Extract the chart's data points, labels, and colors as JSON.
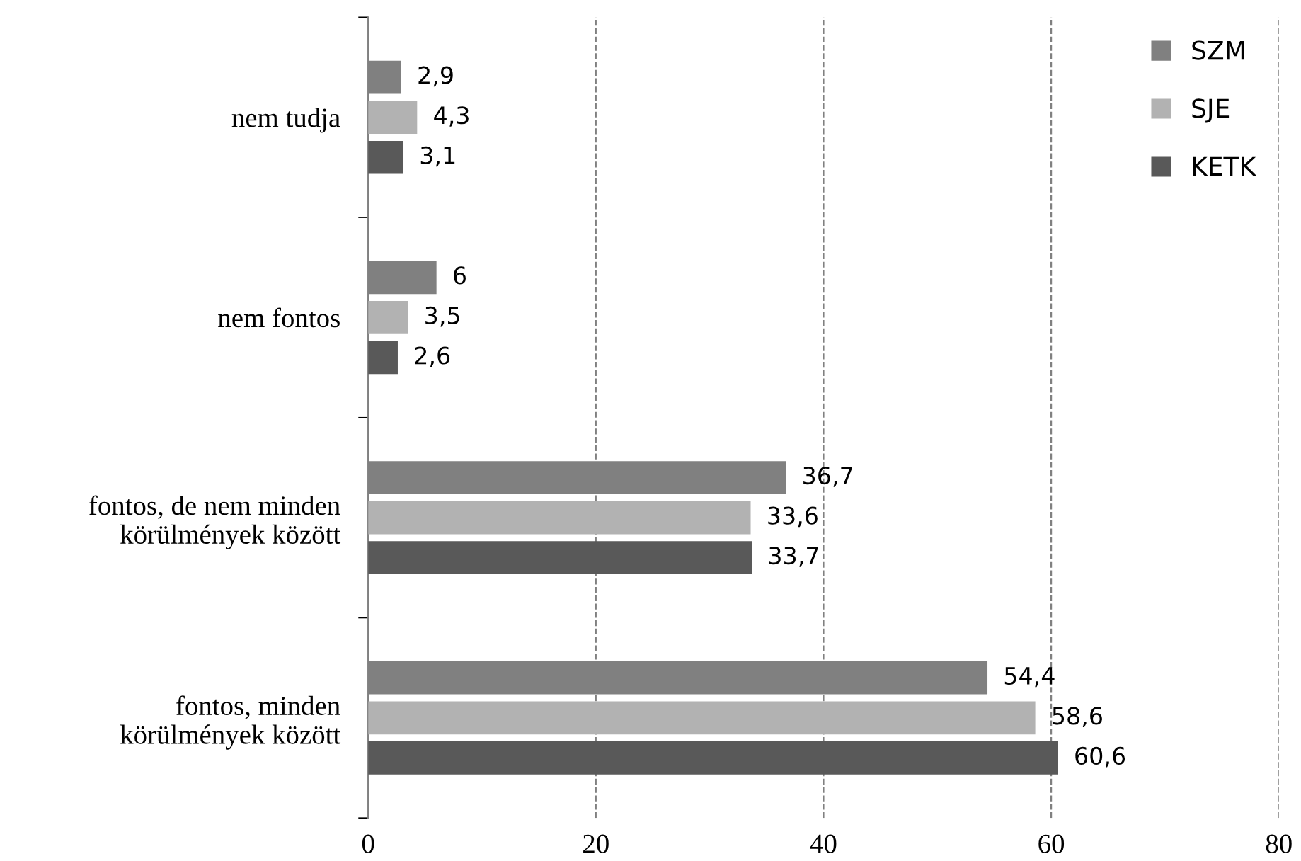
{
  "chart_data": {
    "type": "bar",
    "orientation": "horizontal",
    "categories": [
      "nem tudja",
      "nem fontos",
      "fontos, de nem minden\nkörülmények között",
      "fontos, minden\nkörülmények között"
    ],
    "series": [
      {
        "name": "SZM",
        "color": "#808080",
        "values": [
          2.9,
          6,
          36.7,
          54.4
        ],
        "value_labels": [
          "2,9",
          "6",
          "36,7",
          "54,4"
        ]
      },
      {
        "name": "SJE",
        "color": "#b2b2b2",
        "values": [
          4.3,
          3.5,
          33.6,
          58.6
        ],
        "value_labels": [
          "4,3",
          "3,5",
          "33,6",
          "58,6"
        ]
      },
      {
        "name": "KETK",
        "color": "#595959",
        "values": [
          3.1,
          2.6,
          33.7,
          60.6
        ],
        "value_labels": [
          "3,1",
          "2,6",
          "33,7",
          "60,6"
        ]
      }
    ],
    "xlim": [
      0,
      80
    ],
    "xticks": [
      0,
      20,
      40,
      60,
      80
    ],
    "grid": "x",
    "legend": "top right"
  }
}
